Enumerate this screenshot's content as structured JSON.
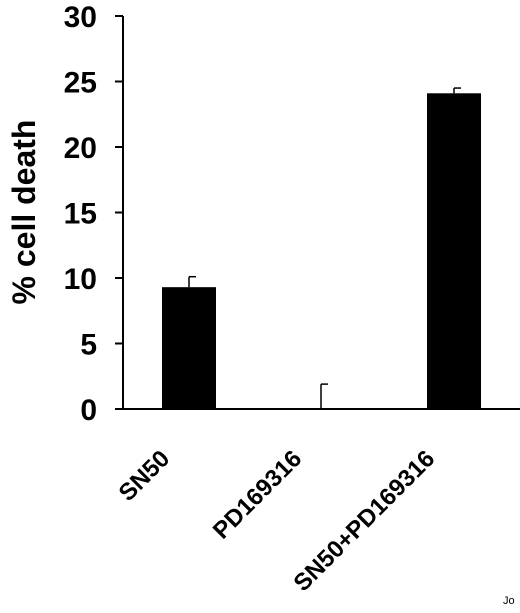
{
  "chart_data": {
    "type": "bar",
    "categories": [
      "SN50",
      "PD169316",
      "SN50+PD169316"
    ],
    "values": [
      9.3,
      0,
      24.1
    ],
    "error": [
      0.8,
      1.9,
      0.4
    ],
    "ylabel": "% cell death",
    "xlabel": "",
    "ylim": [
      0,
      30
    ],
    "yticks": [
      0,
      5,
      10,
      15,
      20,
      25,
      30
    ],
    "bar_color": "#000000",
    "grid": false
  },
  "watermark_text": "Jo"
}
